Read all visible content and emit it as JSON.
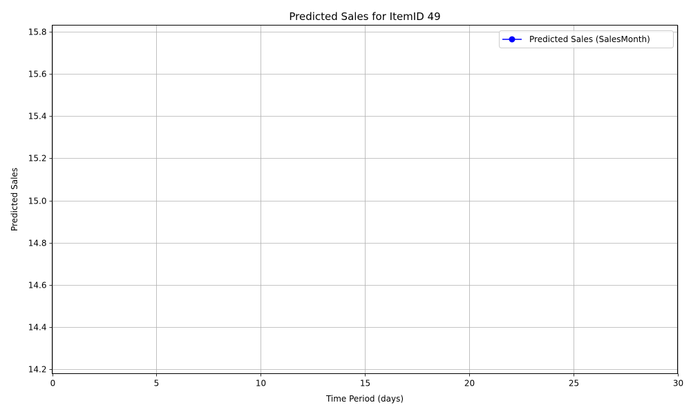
{
  "chart_data": {
    "type": "line",
    "title": "Predicted Sales for ItemID 49",
    "xlabel": "Time Period (days)",
    "ylabel": "Predicted Sales",
    "xlim": [
      0,
      30
    ],
    "ylim": [
      14.18,
      15.83
    ],
    "x_ticks": [
      0,
      5,
      10,
      15,
      20,
      25,
      30
    ],
    "y_ticks": [
      14.2,
      14.4,
      14.6,
      14.8,
      15.0,
      15.2,
      15.4,
      15.6,
      15.8
    ],
    "x_tick_labels": [
      "0",
      "5",
      "10",
      "15",
      "20",
      "25",
      "30"
    ],
    "y_tick_labels": [
      "14.2",
      "14.4",
      "14.6",
      "14.8",
      "15.0",
      "15.2",
      "15.4",
      "15.6",
      "15.8"
    ],
    "grid": true,
    "legend_position": "upper-right",
    "series": [
      {
        "name": "Predicted Sales (SalesMonth)",
        "color": "#0000ff",
        "marker": "circle",
        "x": [],
        "y": []
      }
    ]
  },
  "colors": {
    "grid": "#b0b0b0",
    "axes": "#000000",
    "background": "#ffffff"
  }
}
